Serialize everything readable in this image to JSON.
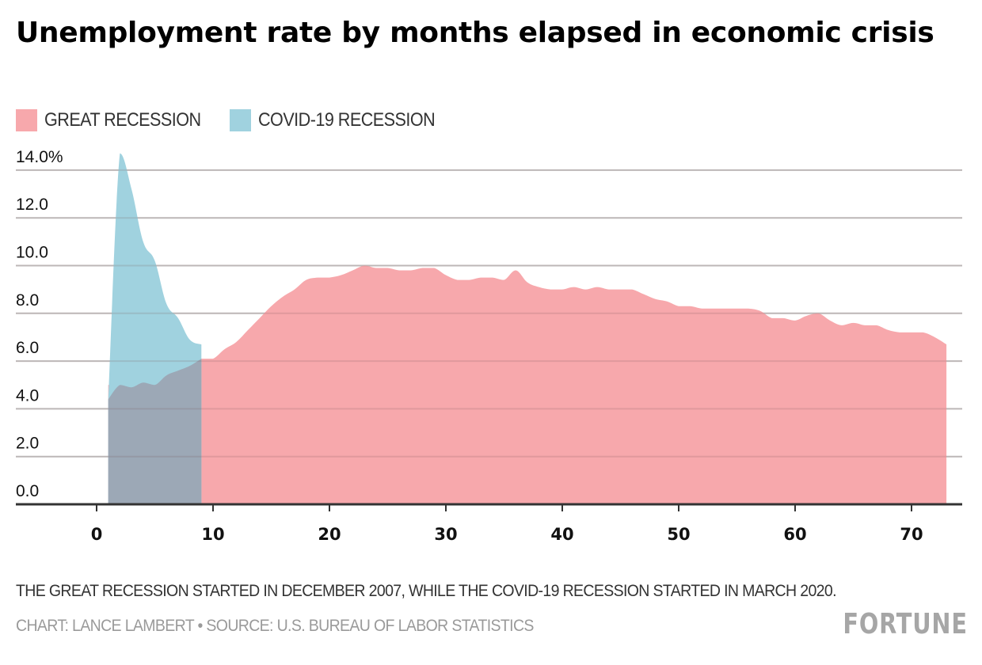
{
  "title": "Unemployment rate by months elapsed in economic crisis",
  "legend": [
    {
      "label": "GREAT RECESSION",
      "color": "#f7a8ac"
    },
    {
      "label": "COVID-19 RECESSION",
      "color": "#a0d2df"
    }
  ],
  "note": "THE GREAT RECESSION STARTED IN DECEMBER 2007, WHILE THE COVID-19 RECESSION STARTED IN MARCH 2020.",
  "credit": "CHART: LANCE LAMBERT • SOURCE: U.S. BUREAU OF LABOR STATISTICS",
  "logo": "FORTUNE",
  "chart_data": {
    "type": "area",
    "title": "Unemployment rate by months elapsed in economic crisis",
    "xlabel": "",
    "ylabel": "",
    "xlim": [
      -1.5,
      74.5
    ],
    "ylim": [
      0,
      14
    ],
    "x_ticks": [
      0,
      10,
      20,
      30,
      40,
      50,
      60,
      70
    ],
    "x_tick_labels": [
      "0",
      "10",
      "20",
      "30",
      "40",
      "50",
      "60",
      "70"
    ],
    "y_ticks": [
      0,
      2,
      4,
      6,
      8,
      10,
      12,
      14
    ],
    "y_tick_labels": [
      "0.0",
      "2.0",
      "4.0",
      "6.0",
      "8.0",
      "10.0",
      "12.0",
      "14.0%"
    ],
    "grid": true,
    "legend_position": "top-left",
    "overlap_color": "#9ca8b6",
    "series": [
      {
        "name": "GREAT RECESSION",
        "color": "#f7a8ac",
        "x": [
          1,
          2,
          3,
          4,
          5,
          6,
          7,
          8,
          9,
          10,
          11,
          12,
          13,
          14,
          15,
          16,
          17,
          18,
          19,
          20,
          21,
          22,
          23,
          24,
          25,
          26,
          27,
          28,
          29,
          30,
          31,
          32,
          33,
          34,
          35,
          36,
          37,
          38,
          39,
          40,
          41,
          42,
          43,
          44,
          45,
          46,
          47,
          48,
          49,
          50,
          51,
          52,
          53,
          54,
          55,
          56,
          57,
          58,
          59,
          60,
          61,
          62,
          63,
          64,
          65,
          66,
          67,
          68,
          69,
          70,
          71,
          72,
          73
        ],
        "values": [
          5.0,
          5.0,
          4.9,
          5.1,
          5.0,
          5.4,
          5.6,
          5.8,
          6.1,
          6.1,
          6.5,
          6.8,
          7.3,
          7.8,
          8.3,
          8.7,
          9.0,
          9.4,
          9.5,
          9.5,
          9.6,
          9.8,
          10.0,
          9.9,
          9.9,
          9.8,
          9.8,
          9.9,
          9.9,
          9.6,
          9.4,
          9.4,
          9.5,
          9.5,
          9.4,
          9.8,
          9.3,
          9.1,
          9.0,
          9.0,
          9.1,
          9.0,
          9.1,
          9.0,
          9.0,
          9.0,
          8.8,
          8.6,
          8.5,
          8.3,
          8.3,
          8.2,
          8.2,
          8.2,
          8.2,
          8.2,
          8.1,
          7.8,
          7.8,
          7.7,
          7.9,
          8.0,
          7.7,
          7.5,
          7.6,
          7.5,
          7.5,
          7.3,
          7.2,
          7.2,
          7.2,
          7.0,
          6.7
        ]
      },
      {
        "name": "COVID-19 RECESSION",
        "color": "#a0d2df",
        "x": [
          1,
          2,
          3,
          4,
          5,
          6,
          7,
          8,
          9
        ],
        "values": [
          4.4,
          14.7,
          13.2,
          11.0,
          10.2,
          8.4,
          7.8,
          6.9,
          6.7
        ]
      }
    ]
  }
}
